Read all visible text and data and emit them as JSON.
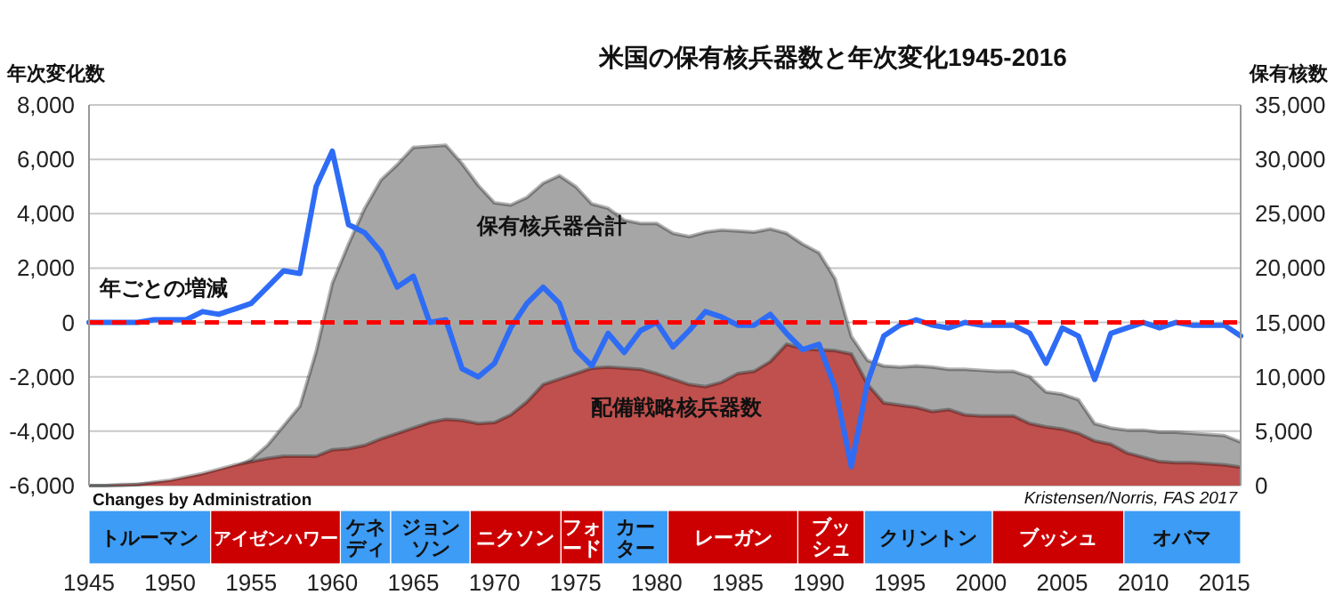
{
  "chart_data": [
    {
      "type": "area",
      "title": "米国の保有核兵器数と年次変化1945-2016",
      "ylabel": "年次変化数",
      "y2label": "保有核数",
      "x": [
        1945,
        1946,
        1947,
        1948,
        1949,
        1950,
        1951,
        1952,
        1953,
        1954,
        1955,
        1956,
        1957,
        1958,
        1959,
        1960,
        1961,
        1962,
        1963,
        1964,
        1965,
        1966,
        1967,
        1968,
        1969,
        1970,
        1971,
        1972,
        1973,
        1974,
        1975,
        1976,
        1977,
        1978,
        1979,
        1980,
        1981,
        1982,
        1983,
        1984,
        1985,
        1986,
        1987,
        1988,
        1989,
        1990,
        1991,
        1992,
        1993,
        1994,
        1995,
        1996,
        1997,
        1998,
        1999,
        2000,
        2001,
        2002,
        2003,
        2004,
        2005,
        2006,
        2007,
        2008,
        2009,
        2010,
        2011,
        2012,
        2013,
        2014,
        2015,
        2016
      ],
      "series": [
        {
          "name": "保有核兵器合計",
          "axis": "y2",
          "color": "#a6a6a6",
          "values": [
            0,
            0,
            0,
            100,
            200,
            300,
            400,
            800,
            1200,
            1700,
            2400,
            3700,
            5500,
            7300,
            12300,
            18600,
            22200,
            25500,
            28100,
            29500,
            31100,
            31200,
            31300,
            29600,
            27600,
            26000,
            25800,
            26500,
            27800,
            28500,
            27500,
            25900,
            25500,
            24400,
            24100,
            24100,
            23200,
            22900,
            23300,
            23500,
            23400,
            23300,
            23600,
            23200,
            22200,
            21400,
            19000,
            13700,
            11500,
            11000,
            10900,
            11000,
            10900,
            10700,
            10700,
            10600,
            10500,
            10500,
            10000,
            8600,
            8400,
            7900,
            5700,
            5300,
            5100,
            5100,
            4900,
            4900,
            4800,
            4700,
            4600,
            4000
          ]
        },
        {
          "name": "配備戦略核兵器数",
          "axis": "y2",
          "color": "#c0504d",
          "values": [
            0,
            0,
            100,
            100,
            300,
            500,
            800,
            1100,
            1500,
            1900,
            2200,
            2500,
            2700,
            2700,
            2700,
            3300,
            3400,
            3700,
            4300,
            4800,
            5300,
            5800,
            6100,
            6000,
            5700,
            5800,
            6500,
            7700,
            9300,
            9800,
            10300,
            10800,
            10900,
            10800,
            10700,
            10300,
            9800,
            9300,
            9100,
            9500,
            10300,
            10500,
            11400,
            13000,
            12600,
            12500,
            12400,
            12100,
            9300,
            7600,
            7400,
            7200,
            6800,
            7000,
            6500,
            6400,
            6400,
            6400,
            5700,
            5400,
            5200,
            4800,
            4100,
            3800,
            3000,
            2600,
            2200,
            2100,
            2100,
            2000,
            1900,
            1700
          ]
        },
        {
          "name": "年ごとの増減",
          "type": "line",
          "axis": "y",
          "color": "#2e6cf5",
          "values": [
            0,
            0,
            0,
            0,
            100,
            100,
            100,
            400,
            300,
            500,
            700,
            1300,
            1900,
            1800,
            5000,
            6300,
            3600,
            3300,
            2600,
            1300,
            1700,
            0,
            100,
            -1700,
            -2000,
            -1500,
            -200,
            700,
            1300,
            700,
            -1000,
            -1600,
            -400,
            -1100,
            -300,
            0,
            -900,
            -300,
            400,
            200,
            -100,
            -100,
            300,
            -400,
            -1000,
            -800,
            -2400,
            -5300,
            -2200,
            -500,
            -100,
            100,
            -100,
            -200,
            0,
            -100,
            -100,
            -100,
            -400,
            -1500,
            -200,
            -500,
            -2100,
            -400,
            -200,
            0,
            -200,
            0,
            -100,
            -100,
            -100,
            -500
          ]
        }
      ],
      "xlim": [
        1945,
        2016
      ],
      "tick_labels": "y",
      "ylim": [
        -6000,
        8000
      ],
      "yticks": [
        {
          "value": -6000,
          "label": "-6,000"
        },
        {
          "value": -4000,
          "label": "-4,000"
        },
        {
          "value": -2000,
          "label": "-2,000"
        },
        0,
        {
          "value": 2000,
          "label": "2,000"
        },
        {
          "value": 4000,
          "label": "4,000"
        },
        {
          "value": 6000,
          "label": "6,000"
        },
        {
          "value": 8000,
          "label": "8,000"
        }
      ],
      "y2lim": [
        0,
        35000
      ],
      "y2ticks": [
        0,
        {
          "value": 5000,
          "label": "5,000"
        },
        {
          "value": 10000,
          "label": "10,000"
        },
        {
          "value": 15000,
          "label": "15,000"
        },
        {
          "value": 20000,
          "label": "20,000"
        },
        {
          "value": 25000,
          "label": "25,000"
        },
        {
          "value": 30000,
          "label": "30,000"
        },
        {
          "value": 35000,
          "label": "35,000"
        }
      ],
      "ref_lines": [
        {
          "axis": "y",
          "value": 0,
          "color": "#ff0000",
          "line_style": "dashed"
        }
      ],
      "annotations": [
        "Kristensen/Norris, FAS 2017"
      ],
      "grid": "y",
      "marker": "none",
      "line_style": "solid"
    },
    {
      "type": "bar",
      "orientation": "horizontal",
      "title": "Changes by Administration",
      "categories": [
        null
      ],
      "tick_labels": "x",
      "xlim": [
        1945,
        2016
      ],
      "xticks": [
        1945,
        1950,
        1955,
        1960,
        1965,
        1970,
        1975,
        1980,
        1985,
        1990,
        1995,
        2000,
        2005,
        2010,
        2015
      ],
      "series": [
        {
          "name": "トルーマン",
          "color": "#3d9cf5",
          "base": [
            1945
          ],
          "values": [
            7.5
          ]
        },
        {
          "name": "アイゼンハワー",
          "color": "#cc0000",
          "base": [
            1952.5
          ],
          "values": [
            8
          ]
        },
        {
          "name": "ケネディ",
          "color": "#3d9cf5",
          "base": [
            1960.5
          ],
          "values": [
            3.1
          ]
        },
        {
          "name": "ジョンソン",
          "color": "#3d9cf5",
          "base": [
            1963.6
          ],
          "values": [
            4.9
          ]
        },
        {
          "name": "ニクソン",
          "color": "#cc0000",
          "base": [
            1968.5
          ],
          "values": [
            5.6
          ]
        },
        {
          "name": "フォード",
          "color": "#cc0000",
          "base": [
            1974.1
          ],
          "values": [
            2.6
          ]
        },
        {
          "name": "カーター",
          "color": "#3d9cf5",
          "base": [
            1976.7
          ],
          "values": [
            4
          ]
        },
        {
          "name": "レーガン",
          "color": "#cc0000",
          "base": [
            1980.7
          ],
          "values": [
            8
          ]
        },
        {
          "name": "ブッシュ",
          "color": "#cc0000",
          "base": [
            1988.7
          ],
          "values": [
            4.1
          ]
        },
        {
          "name": "クリントン",
          "color": "#3d9cf5",
          "base": [
            1992.8
          ],
          "values": [
            7.9
          ]
        },
        {
          "name": "ブッシュ",
          "color": "#cc0000",
          "base": [
            2000.7
          ],
          "values": [
            8.1
          ]
        },
        {
          "name": "オバマ",
          "color": "#3d9cf5",
          "base": [
            2008.8
          ],
          "values": [
            7.2
          ]
        }
      ]
    }
  ]
}
